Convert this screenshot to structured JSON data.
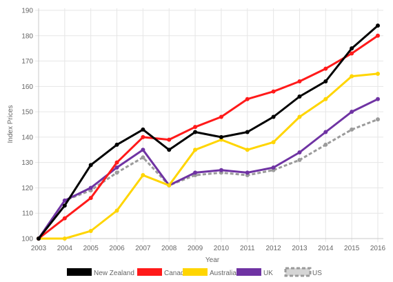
{
  "chart_data": {
    "type": "line",
    "title": "",
    "xlabel": "Year",
    "ylabel": "Index Prices",
    "x": [
      2003,
      2004,
      2005,
      2006,
      2007,
      2008,
      2009,
      2010,
      2011,
      2012,
      2013,
      2014,
      2015,
      2016
    ],
    "ylim": [
      100,
      190
    ],
    "yticks": [
      100,
      110,
      120,
      130,
      140,
      150,
      160,
      170,
      180,
      190
    ],
    "grid": true,
    "legend_position": "bottom",
    "series": [
      {
        "name": "New Zealand",
        "color": "#000000",
        "dashed": false,
        "values": [
          100,
          113,
          129,
          137,
          143,
          135,
          142,
          140,
          142,
          148,
          156,
          162,
          175,
          184
        ]
      },
      {
        "name": "Canada",
        "color": "#ff1a1a",
        "dashed": false,
        "values": [
          100,
          108,
          116,
          130,
          140,
          139,
          144,
          148,
          155,
          158,
          162,
          167,
          173,
          180
        ]
      },
      {
        "name": "Australia",
        "color": "#ffd500",
        "dashed": false,
        "values": [
          100,
          100,
          103,
          111,
          125,
          121,
          135,
          139,
          135,
          138,
          148,
          155,
          164,
          165
        ]
      },
      {
        "name": "UK",
        "color": "#6f33a3",
        "dashed": false,
        "values": [
          100,
          115,
          120,
          128,
          135,
          121,
          126,
          127,
          126,
          128,
          134,
          142,
          150,
          155
        ]
      },
      {
        "name": "US",
        "color": "#9b9b9b",
        "dashed": true,
        "values": [
          100,
          115,
          119,
          126,
          132,
          121,
          125,
          126,
          125,
          127,
          131,
          137,
          143,
          147
        ]
      }
    ]
  }
}
